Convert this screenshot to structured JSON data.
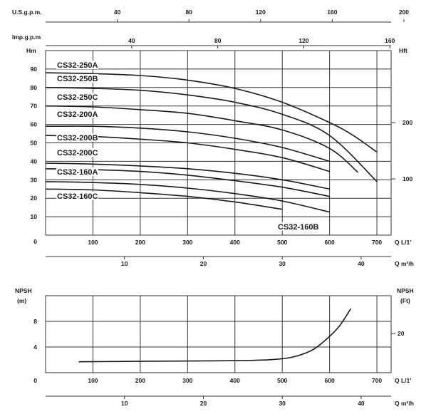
{
  "chart_data": [
    {
      "type": "line",
      "title": "",
      "xlabel": "Q L/1'",
      "ylabel": "Hm",
      "y2label": "Hft",
      "xlim": [
        0,
        730
      ],
      "ylim": [
        0,
        100
      ],
      "grid": true,
      "x_ticks": [
        "0",
        "100",
        "200",
        "300",
        "400",
        "500",
        "600",
        "700"
      ],
      "y_ticks": [
        "0",
        "10",
        "20",
        "30",
        "40",
        "50",
        "60",
        "70",
        "80",
        "90"
      ],
      "y2_ticks": [
        "100",
        "200"
      ],
      "top_axes": [
        {
          "label": "U.S.g.p.m.",
          "ticks": [
            "40",
            "80",
            "120",
            "160",
            "200"
          ]
        },
        {
          "label": "Imp.g.p.m",
          "ticks": [
            "40",
            "80",
            "120",
            "160"
          ]
        }
      ],
      "bottom_axis": {
        "label": "Q m³/h",
        "ticks": [
          "10",
          "20",
          "30",
          "40"
        ]
      },
      "series": [
        {
          "name": "CS32-250A",
          "x": [
            0,
            100,
            200,
            300,
            400,
            500,
            600,
            650,
            700
          ],
          "y": [
            88,
            87.5,
            86.5,
            84,
            79.5,
            72,
            61,
            54,
            45
          ]
        },
        {
          "name": "CS32-250B",
          "x": [
            0,
            100,
            200,
            300,
            400,
            500,
            600,
            700
          ],
          "y": [
            80,
            79.5,
            78.5,
            76,
            72,
            65.5,
            54,
            29
          ]
        },
        {
          "name": "CS32-250C",
          "x": [
            0,
            100,
            200,
            300,
            400,
            500,
            600,
            660
          ],
          "y": [
            70,
            69.5,
            68,
            66,
            62,
            57,
            47,
            34
          ]
        },
        {
          "name": "CS32-200A",
          "x": [
            0,
            100,
            200,
            300,
            400,
            500,
            600
          ],
          "y": [
            59,
            59,
            58,
            56,
            52.5,
            47.5,
            40
          ]
        },
        {
          "name": "CS32-200B",
          "x": [
            0,
            100,
            200,
            300,
            400,
            500,
            600
          ],
          "y": [
            54,
            53.5,
            52,
            50,
            46.5,
            42,
            34.5
          ]
        },
        {
          "name": "CS32-200C",
          "x": [
            0,
            100,
            200,
            300,
            400,
            500,
            600
          ],
          "y": [
            39,
            38.5,
            37.5,
            36,
            33.5,
            30,
            25
          ]
        },
        {
          "name": "CS32-160A",
          "x": [
            0,
            100,
            200,
            300,
            400,
            500,
            600
          ],
          "y": [
            36,
            35.5,
            34.5,
            32.5,
            29.5,
            26,
            21
          ]
        },
        {
          "name": "CS32-160B",
          "x": [
            0,
            100,
            200,
            300,
            400,
            500,
            600
          ],
          "y": [
            29,
            28.5,
            27.5,
            25.5,
            22.5,
            18.5,
            12.5
          ]
        },
        {
          "name": "CS32-160C",
          "x": [
            0,
            100,
            200,
            300,
            400,
            500
          ],
          "y": [
            25,
            24.5,
            23,
            21,
            18,
            14
          ]
        }
      ]
    },
    {
      "type": "line",
      "title": "",
      "xlabel": "Q L/1'",
      "ylabel": "NPSH\n(m)",
      "y2label": "NPSH\n(Ft)",
      "xlim": [
        0,
        730
      ],
      "ylim": [
        0,
        12
      ],
      "grid": true,
      "x_ticks": [
        "0",
        "100",
        "200",
        "300",
        "400",
        "500",
        "600",
        "700"
      ],
      "y_ticks": [
        "4",
        "8"
      ],
      "y2_ticks": [
        "20"
      ],
      "bottom_axis": {
        "label": "Q m³/h",
        "ticks": [
          "10",
          "20",
          "30",
          "40"
        ]
      },
      "series": [
        {
          "name": "",
          "x": [
            70,
            150,
            250,
            350,
            420,
            480,
            520,
            560,
            590,
            620,
            645
          ],
          "y": [
            1.7,
            1.75,
            1.8,
            1.85,
            1.9,
            2.05,
            2.4,
            3.4,
            5.0,
            7.2,
            10.0
          ]
        }
      ]
    }
  ]
}
